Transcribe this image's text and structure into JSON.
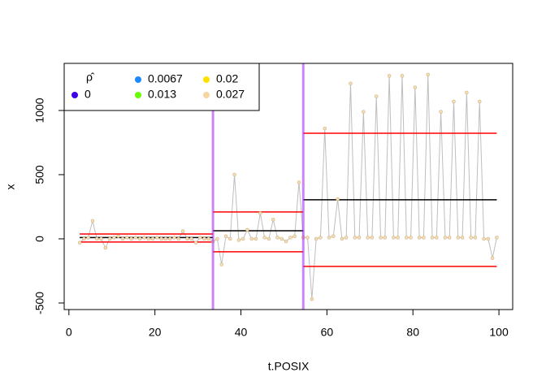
{
  "chart_data": {
    "type": "line",
    "xlabel": "t.POSIX",
    "ylabel": "x",
    "x": [
      2.5,
      3.5,
      4.5,
      5.5,
      6.5,
      7.5,
      8.5,
      9.5,
      10.5,
      11.5,
      12.5,
      13.5,
      14.5,
      15.5,
      16.5,
      17.5,
      18.5,
      19.5,
      20.5,
      21.5,
      22.5,
      23.5,
      24.5,
      25.5,
      26.5,
      27.5,
      28.5,
      29.5,
      30.5,
      31.5,
      32.5,
      33.5,
      34.5,
      35.5,
      36.5,
      37.5,
      38.5,
      39.5,
      40.5,
      41.5,
      42.5,
      43.5,
      44.5,
      45.5,
      46.5,
      47.5,
      48.5,
      49.5,
      50.5,
      51.5,
      52.5,
      53.5,
      54.5,
      55.5,
      56.5,
      57.5,
      58.5,
      59.5,
      60.5,
      61.5,
      62.5,
      63.5,
      64.5,
      65.5,
      66.5,
      67.5,
      68.5,
      69.5,
      70.5,
      71.5,
      72.5,
      73.5,
      74.5,
      75.5,
      76.5,
      77.5,
      78.5,
      79.5,
      80.5,
      81.5,
      82.5,
      83.5,
      84.5,
      85.5,
      86.5,
      87.5,
      88.5,
      89.5,
      90.5,
      91.5,
      92.5,
      93.5,
      94.5,
      95.5,
      96.5,
      97.5,
      98.5,
      99.5
    ],
    "values": [
      -30,
      0,
      10,
      140,
      0,
      0,
      -70,
      0,
      10,
      20,
      0,
      10,
      0,
      10,
      0,
      10,
      0,
      0,
      10,
      0,
      0,
      0,
      10,
      0,
      60,
      0,
      0,
      -30,
      10,
      0,
      0,
      -20,
      0,
      -200,
      20,
      0,
      500,
      -10,
      0,
      70,
      0,
      0,
      200,
      10,
      0,
      150,
      10,
      0,
      -20,
      10,
      20,
      440,
      10,
      10,
      -470,
      0,
      10,
      860,
      10,
      20,
      310,
      0,
      10,
      1210,
      10,
      10,
      990,
      10,
      10,
      1110,
      10,
      10,
      1270,
      10,
      10,
      1270,
      10,
      10,
      1180,
      10,
      10,
      1280,
      10,
      10,
      990,
      10,
      10,
      1070,
      10,
      10,
      1140,
      10,
      10,
      1070,
      0,
      0,
      -150,
      10
    ],
    "line_color": "#bebebe",
    "point_color": "#f5deb3",
    "segments": [
      {
        "x0": 2.5,
        "x1": 33.5,
        "y": 10,
        "color": "#000000"
      },
      {
        "x0": 2.5,
        "x1": 33.5,
        "y": 38,
        "color": "#ff0000"
      },
      {
        "x0": 2.5,
        "x1": 33.5,
        "y": -25,
        "color": "#ff0000"
      },
      {
        "x0": 33.5,
        "x1": 54.5,
        "y": 63,
        "color": "#000000"
      },
      {
        "x0": 33.5,
        "x1": 54.5,
        "y": 209,
        "color": "#ff0000"
      },
      {
        "x0": 33.5,
        "x1": 54.5,
        "y": -101,
        "color": "#ff0000"
      },
      {
        "x0": 54.5,
        "x1": 99.5,
        "y": 304,
        "color": "#000000"
      },
      {
        "x0": 54.5,
        "x1": 99.5,
        "y": 823,
        "color": "#ff0000"
      },
      {
        "x0": 54.5,
        "x1": 99.5,
        "y": -215,
        "color": "#ff0000"
      }
    ],
    "changepoints": [
      33.5,
      54.5
    ],
    "changepoint_color": "#a020f0",
    "legend_title": "ρ̂",
    "legend": [
      {
        "label": "0",
        "color": "#3b00e8"
      },
      {
        "label": "0.0067",
        "color": "#1e88ff"
      },
      {
        "label": "0.013",
        "color": "#66ff00"
      },
      {
        "label": "0.02",
        "color": "#ffe000"
      },
      {
        "label": "0.027",
        "color": "#f5d5a0"
      }
    ],
    "xlim": [
      -1.1,
      103.2
    ],
    "ylim": [
      -551,
      1367
    ],
    "xticks": [
      0,
      20,
      40,
      60,
      80,
      100
    ],
    "yticks": [
      -500,
      0,
      500,
      1000
    ]
  }
}
